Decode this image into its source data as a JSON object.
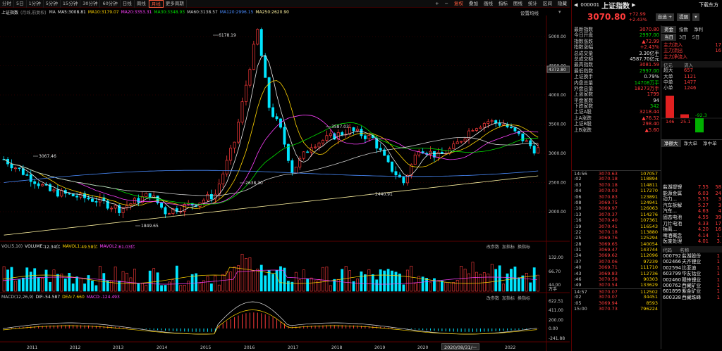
{
  "toolbar": {
    "periods": [
      "分时",
      "5日",
      "1分钟",
      "5分钟",
      "15分钟",
      "30分钟",
      "60分钟",
      "日线",
      "周线",
      "月线",
      "更多周期"
    ],
    "active_period": "月线",
    "right_buttons": [
      "+",
      "−",
      "复权",
      "叠加",
      "画线",
      "指标",
      "图线",
      "统计",
      "区间",
      "隐藏"
    ]
  },
  "chart": {
    "name": "上证指数",
    "mode": "(月线,前复权)",
    "ma_legend": [
      {
        "label": "MA",
        "value": "",
        "color": "#cfcfcf"
      },
      {
        "label": "MA5:",
        "value": "3008.81",
        "color": "#e8e8e8"
      },
      {
        "label": "MA10:",
        "value": "3179.07",
        "color": "#ffd400"
      },
      {
        "label": "MA20:",
        "value": "3353.31",
        "color": "#ff40ff"
      },
      {
        "label": "MA30:",
        "value": "3348.93",
        "color": "#00e000"
      },
      {
        "label": "MA60:",
        "value": "3138.57",
        "color": "#cfcfcf"
      },
      {
        "label": "MA120:",
        "value": "2996.15",
        "color": "#4a8cff"
      },
      {
        "label": "MA250:",
        "value": "2620.90",
        "color": "#fff3a0"
      }
    ],
    "settings_label": "设置均线",
    "price_axis": [
      "5000.00",
      "4500.00",
      "4000.00",
      "3500.00",
      "3000.00",
      "2500.00",
      "2000.00"
    ],
    "current_price_tag": "4372.80",
    "annotations": [
      {
        "text": "6178.19"
      },
      {
        "text": "3067.46"
      },
      {
        "text": "3587.03"
      },
      {
        "text": "2638.30"
      },
      {
        "text": "2440.91"
      },
      {
        "text": "1849.65"
      }
    ],
    "year_labels": [
      "2011",
      "2012",
      "2013",
      "2014",
      "2015",
      "2016",
      "2017",
      "2018",
      "2019",
      "2020",
      "2022"
    ],
    "current_date_tag": "2020/08/31/一"
  },
  "volume": {
    "legend": [
      {
        "label": "VOL(5,10)",
        "value": "",
        "color": "#bdbdbd"
      },
      {
        "label": "VOLUME:",
        "value": "12.34亿",
        "color": "#e8e8e8"
      },
      {
        "label": "MAVOL1:",
        "value": "49.58亿",
        "color": "#ffd400"
      },
      {
        "label": "MAVOL2:",
        "value": "61.03亿",
        "color": "#ff40ff"
      }
    ],
    "axis": [
      "132.00",
      "66.70",
      "44.00",
      "万手"
    ],
    "buttons": [
      "改参数",
      "加指标",
      "换指标"
    ]
  },
  "macd": {
    "legend": [
      {
        "label": "MACD(12,26,9)",
        "value": "",
        "color": "#bdbdbd"
      },
      {
        "label": "DIF:",
        "value": "-54.587",
        "color": "#e8e8e8"
      },
      {
        "label": "DEA:",
        "value": "7.660",
        "color": "#ffd400"
      },
      {
        "label": "MACD:",
        "value": "-124.493",
        "color": "#ff40ff"
      }
    ],
    "axis": [
      "622.51",
      "411.00",
      "200.00",
      "0.00",
      "-241.88"
    ],
    "buttons": [
      "改参数",
      "加指标",
      "换指标"
    ]
  },
  "quote": {
    "code": "000001",
    "name": "上证指数",
    "top_right_link": "下载东方",
    "price": "3070.80",
    "change": "+72.99",
    "change_pct": "+2.43%",
    "btn_watch": "自选 +",
    "btn_alert": "提醒",
    "btn_more": "",
    "rows": [
      {
        "label": "最新指数",
        "value": "3070.80",
        "cls": "red"
      },
      {
        "label": "今日开盘",
        "value": "2997.00",
        "cls": "green"
      },
      {
        "label": "指数涨跌",
        "value": "▲72.99",
        "cls": "red"
      },
      {
        "label": "指数涨幅",
        "value": "+2.43%",
        "cls": "red"
      },
      {
        "label": "总成交量",
        "value": "3.30亿手",
        "cls": "white"
      },
      {
        "label": "总成交额",
        "value": "4587.70亿元",
        "cls": "white"
      },
      {
        "label": "最高指数",
        "value": "3081.59",
        "cls": "red"
      },
      {
        "label": "最低指数",
        "value": "2997.00",
        "cls": "green"
      },
      {
        "label": "上证换手",
        "value": "0.79%",
        "cls": "white"
      },
      {
        "label": "内盘总量",
        "value": "14708万手",
        "cls": "green"
      },
      {
        "label": "外盘总量",
        "value": "18273万手",
        "cls": "red"
      },
      {
        "label": "上涨家数",
        "value": "1799",
        "cls": "red"
      },
      {
        "label": "平盘家数",
        "value": "94",
        "cls": "white"
      },
      {
        "label": "下跌家数",
        "value": "342",
        "cls": "green"
      },
      {
        "label": "上证A股",
        "value": "3218.44",
        "cls": "red"
      },
      {
        "label": "上A涨跌",
        "value": "▲76.52",
        "cls": "red"
      },
      {
        "label": "上证B股",
        "value": "298.40",
        "cls": "red"
      },
      {
        "label": "上B涨跌",
        "value": "▲5.60",
        "cls": "red"
      }
    ],
    "ticks": [
      {
        "time": "14:56",
        "price": "3070.63",
        "vol": "107057"
      },
      {
        "time": ":02",
        "price": "3070.18",
        "vol": "118894"
      },
      {
        "time": ":03",
        "price": "3070.18",
        "vol": "114811"
      },
      {
        "time": ":04",
        "price": "3070.03",
        "vol": "117270"
      },
      {
        "time": ":06",
        "price": "3070.83",
        "vol": "123891"
      },
      {
        "time": ":08",
        "price": "3069.75",
        "vol": "124941"
      },
      {
        "time": ":10",
        "price": "3069.97",
        "vol": "126063"
      },
      {
        "time": ":13",
        "price": "3070.37",
        "vol": "114276"
      },
      {
        "time": ":16",
        "price": "3070.40",
        "vol": "107361"
      },
      {
        "time": ":19",
        "price": "3070.41",
        "vol": "116543"
      },
      {
        "time": ":22",
        "price": "3070.18",
        "vol": "113880"
      },
      {
        "time": ":25",
        "price": "3069.76",
        "vol": "125294"
      },
      {
        "time": ":28",
        "price": "3069.65",
        "vol": "140054"
      },
      {
        "time": ":31",
        "price": "3069.47",
        "vol": "143744"
      },
      {
        "time": ":34",
        "price": "3069.62",
        "vol": "112096"
      },
      {
        "time": ":37",
        "price": "3070.06",
        "vol": "97239"
      },
      {
        "time": ":40",
        "price": "3069.71",
        "vol": "111710"
      },
      {
        "time": ":43",
        "price": "3069.83",
        "vol": "112736"
      },
      {
        "time": ":46",
        "price": "3070.58",
        "vol": "90303"
      },
      {
        "time": ":49",
        "price": "3070.54",
        "vol": "133629"
      },
      {
        "time": "14:57",
        "price": "3070.07",
        "vol": "112502"
      },
      {
        "time": ":02",
        "price": "3070.07",
        "vol": "34451"
      },
      {
        "time": ":05",
        "price": "3069.94",
        "vol": "8593"
      },
      {
        "time": "15:00",
        "price": "3070.73",
        "vol": "796224"
      }
    ],
    "fund_tabs": [
      "资金",
      "指数",
      "净利",
      "当日",
      "3日",
      "5日"
    ],
    "fund_flow": [
      {
        "label": "主力流入",
        "value": "17"
      },
      {
        "label": "主力流出",
        "value": "16"
      },
      {
        "label": "主力净流入",
        "value": ""
      }
    ],
    "flow_header": [
      "亿元",
      "流入",
      ""
    ],
    "flow_rows": [
      {
        "label": "超大",
        "value": "657"
      },
      {
        "label": "大单",
        "value": "1121"
      },
      {
        "label": "中单",
        "value": "1477"
      },
      {
        "label": "小单",
        "value": "1246"
      }
    ],
    "flow_bars": [
      {
        "value": 146,
        "label": "146"
      },
      {
        "value": 25.1,
        "label": "25.1"
      },
      {
        "value": -92.3,
        "label": "-92.3"
      },
      {
        "value": 0,
        "label": ""
      }
    ],
    "sector_tabs": [
      "净额大",
      "净大单",
      "净中单"
    ],
    "sectors": [
      {
        "name": "盐湖提锂",
        "v1": "7.55",
        "v2": "58"
      },
      {
        "name": "能源金属",
        "v1": "6.03",
        "v2": "24"
      },
      {
        "name": "动力...",
        "v1": "5.53",
        "v2": "3"
      },
      {
        "name": "汽车拆解",
        "v1": "5.27",
        "v2": "3"
      },
      {
        "name": "汽车...",
        "v1": "4.63",
        "v2": "4"
      },
      {
        "name": "固态电池",
        "v1": "4.55",
        "v2": "39"
      },
      {
        "name": "刀片电池",
        "v1": "4.33",
        "v2": "17"
      },
      {
        "name": "钠离...",
        "v1": "4.20",
        "v2": "16"
      },
      {
        "name": "啤酒概念",
        "v1": "4.14",
        "v2": "1."
      },
      {
        "name": "医废处理",
        "v1": "4.01",
        "v2": "3."
      }
    ],
    "stock_header": [
      "代码",
      "名称",
      ""
    ],
    "stocks": [
      {
        "code": "000792",
        "name": "盐湖股份",
        "v": "1"
      },
      {
        "code": "002466",
        "name": "天齐锂业",
        "v": "1"
      },
      {
        "code": "002594",
        "name": "比亚迪",
        "v": "1"
      },
      {
        "code": "603799",
        "name": "华友钴业",
        "v": "1"
      },
      {
        "code": "002460",
        "name": "赣锋锂业",
        "v": "1"
      },
      {
        "code": "000762",
        "name": "西藏矿业",
        "v": "1"
      },
      {
        "code": "601899",
        "name": "紫金矿业",
        "v": "1"
      },
      {
        "code": "600338",
        "name": "西藏珠峰",
        "v": "1"
      }
    ]
  },
  "colors": {
    "up": "#ff3b3b",
    "down": "#00e5ff",
    "green": "#00d000",
    "panel_border": "#5a0000"
  }
}
